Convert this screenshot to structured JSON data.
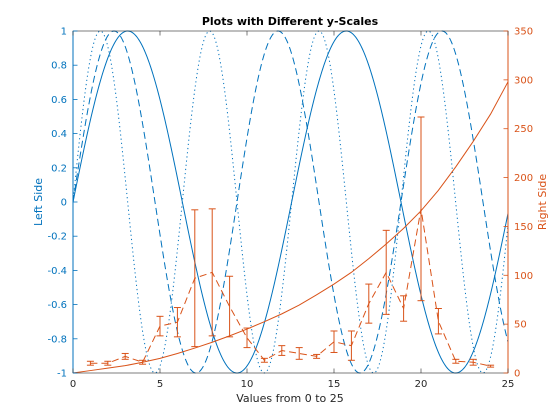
{
  "chart_data": {
    "type": "line",
    "title": "Plots with Different y-Scales",
    "xlabel": "Values from 0 to 25",
    "ylabel_left": "Left Side",
    "ylabel_right": "Right Side",
    "xlim": [
      0,
      25
    ],
    "ylim_left": [
      -1,
      1
    ],
    "ylim_right": [
      0,
      350
    ],
    "x_ticks": [
      "0",
      "5",
      "10",
      "15",
      "20",
      "25"
    ],
    "y_left_ticks": [
      "-1",
      "-0.8",
      "-0.6",
      "-0.4",
      "-0.2",
      "0",
      "0.2",
      "0.4",
      "0.6",
      "0.8",
      "1"
    ],
    "y_right_ticks": [
      "0",
      "50",
      "100",
      "150",
      "200",
      "250",
      "300",
      "350"
    ],
    "grid": false,
    "colors": {
      "left": "#0072BD",
      "right": "#D95319"
    },
    "left_series": [
      {
        "kind": "sin",
        "period_x": 2,
        "style": "solid"
      },
      {
        "kind": "sin",
        "period_x": 1.5,
        "style": "dashed"
      },
      {
        "kind": "sin",
        "period_x": 1,
        "style": "dotted"
      }
    ],
    "right_series": [
      {
        "kind": "curve",
        "style": "solid",
        "x": [
          0,
          1,
          2,
          3,
          4,
          5,
          6,
          7,
          8,
          9,
          10,
          11,
          12,
          13,
          14,
          15,
          16,
          17,
          18,
          19,
          20,
          21,
          22,
          23,
          24,
          25
        ],
        "y": [
          0,
          2.5,
          5,
          7.5,
          11,
          15,
          20,
          25.5,
          31.5,
          38,
          45,
          52.5,
          60.5,
          69.5,
          80,
          91,
          103,
          117,
          132,
          148,
          166,
          187,
          211,
          237,
          265,
          298
        ]
      },
      {
        "kind": "errorbar",
        "style": "dashed",
        "x": [
          1,
          2,
          3,
          4,
          5,
          6,
          7,
          8,
          9,
          10,
          11,
          12,
          13,
          14,
          15,
          16,
          17,
          18,
          19,
          20,
          21,
          22,
          23,
          24
        ],
        "y": [
          10,
          10,
          17,
          11,
          48,
          52,
          97,
          103,
          68,
          36,
          13,
          23,
          20,
          17,
          32,
          28,
          71,
          103,
          66,
          168,
          53,
          12,
          11,
          7
        ],
        "err": [
          2,
          2,
          3,
          2,
          10,
          15,
          70,
          65,
          31,
          10,
          2,
          5,
          6,
          2,
          11,
          15,
          20,
          43,
          13,
          94,
          13,
          2,
          3,
          1
        ]
      }
    ]
  }
}
